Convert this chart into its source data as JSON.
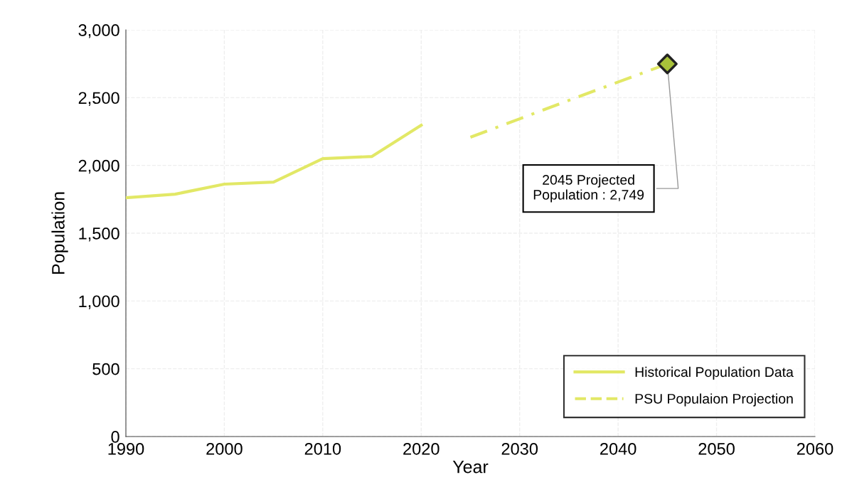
{
  "chart_data": {
    "type": "line",
    "xlabel": "Year",
    "ylabel": "Population",
    "xlim": [
      1990,
      2060
    ],
    "xticks": [
      1990,
      2000,
      2010,
      2020,
      2030,
      2040,
      2050,
      2060
    ],
    "ylim": [
      0,
      3000
    ],
    "yticks": [
      {
        "value": 0,
        "label": "0"
      },
      {
        "value": 500,
        "label": "500"
      },
      {
        "value": 1000,
        "label": "1,000"
      },
      {
        "value": 1500,
        "label": "1,500"
      },
      {
        "value": 2000,
        "label": "2,000"
      },
      {
        "value": 2500,
        "label": "2,500"
      },
      {
        "value": 3000,
        "label": "3,000"
      }
    ],
    "grid": true,
    "legend": "bottom right",
    "series": [
      {
        "name": "Historical Population Data",
        "color": "#e2e866",
        "line_style": "solid",
        "marker": "none",
        "x": [
          1990,
          1995,
          2000,
          2005,
          2010,
          2015,
          2020
        ],
        "values": [
          1762,
          1788,
          1862,
          1877,
          2050,
          2066,
          2297
        ]
      },
      {
        "name": "PSU Populaion Projection",
        "color": "#e2e866",
        "line_style": "dashdot",
        "marker": "none",
        "x": [
          2025,
          2030,
          2035,
          2040,
          2045
        ],
        "values": [
          2208,
          2344,
          2480,
          2615,
          2749
        ]
      },
      {
        "type": "scatter",
        "color": "#a8c23a",
        "marker": "diamond",
        "x": [
          2045
        ],
        "values": [
          2749
        ]
      }
    ],
    "annotations": [
      {
        "text": "2045 Projected\nPopulation : 2,749",
        "x": 2045,
        "y": 2749
      }
    ]
  }
}
